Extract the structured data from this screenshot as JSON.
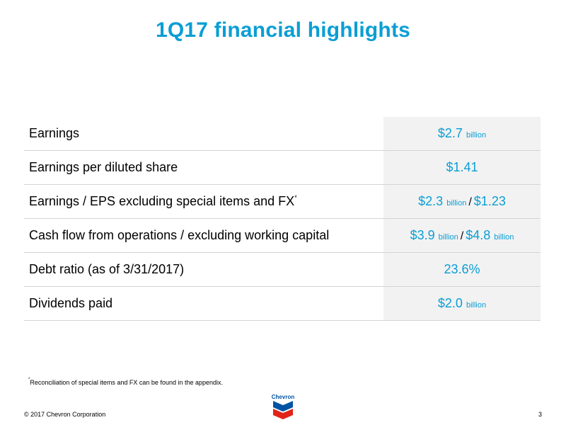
{
  "title": "1Q17 financial highlights",
  "rows": [
    {
      "label": "Earnings",
      "v1": "$2.7",
      "u1": "billion"
    },
    {
      "label": "Earnings per diluted share",
      "v1": "$1.41"
    },
    {
      "label": "Earnings / EPS excluding special items and FX",
      "label_sup": "*",
      "v1": "$2.3",
      "u1": "billion",
      "sep": "/",
      "v2": "$1.23"
    },
    {
      "label": "Cash flow from operations / excluding working capital",
      "v1": "$3.9",
      "u1": "billion",
      "sep": "/",
      "v2": "$4.8",
      "u2": "billion"
    },
    {
      "label": "Debt ratio (as of 3/31/2017)",
      "v1": "23.6%"
    },
    {
      "label": "Dividends paid",
      "v1": "$2.0",
      "u1": "billion"
    }
  ],
  "footnote": {
    "marker": "*",
    "text": "Reconciliation of special items and FX can be found in the appendix."
  },
  "footer": {
    "copyright": "© 2017 Chevron Corporation",
    "page_number": "3",
    "logo_text": "Chevron"
  },
  "colors": {
    "accent": "#0b9ed4",
    "logo_blue": "#0054a4",
    "logo_red": "#e2231a"
  }
}
